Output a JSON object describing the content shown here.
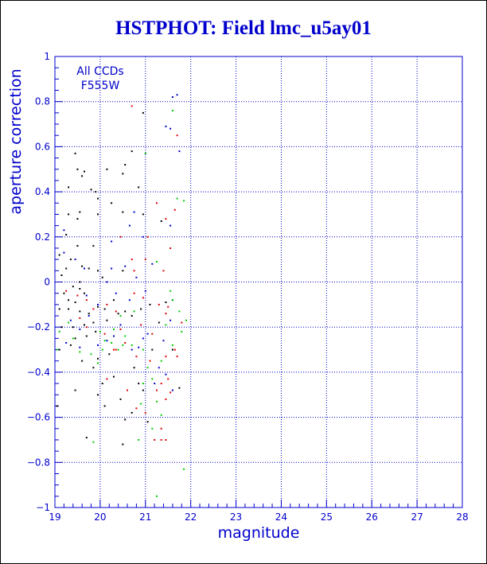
{
  "colors": {
    "title": "#0000cc",
    "axes": "#0000cc",
    "grid": "#0000cc",
    "point_black": "#000000",
    "point_blue": "#0000cc",
    "point_red": "#dd0000",
    "point_green": "#00cc00"
  },
  "chart_data": {
    "type": "scatter",
    "title": "HSTPHOT: Field lmc_u5ay01",
    "xlabel": "magnitude",
    "ylabel": "aperture correction",
    "xlim": [
      19,
      28
    ],
    "ylim": [
      -1,
      1
    ],
    "x_ticks": [
      19,
      20,
      21,
      22,
      23,
      24,
      25,
      26,
      27,
      28
    ],
    "x_tick_labels": [
      "19",
      "20",
      "21",
      "22",
      "23",
      "24",
      "25",
      "26",
      "27",
      "28"
    ],
    "y_ticks": [
      -1,
      -0.8,
      -0.6,
      -0.4,
      -0.2,
      0,
      0.2,
      0.4,
      0.6,
      0.8,
      1
    ],
    "y_tick_labels": [
      "−1",
      "−0.8",
      "−0.6",
      "−0.4",
      "−0.2",
      "0",
      "0.2",
      "0.4",
      "0.6",
      "0.8",
      "1"
    ],
    "grid": true,
    "grid_style": "dotted",
    "annotation": [
      "All CCDs",
      "F555W"
    ],
    "series": [
      {
        "color": "point_black",
        "points": [
          [
            19.45,
            0.57
          ],
          [
            19.5,
            0.5
          ],
          [
            19.65,
            0.49
          ],
          [
            19.6,
            0.47
          ],
          [
            19.9,
            0.4
          ],
          [
            19.8,
            0.41
          ],
          [
            19.3,
            0.42
          ],
          [
            19.95,
            0.37
          ],
          [
            20.15,
            0.5
          ],
          [
            20.5,
            0.48
          ],
          [
            20.7,
            0.58
          ],
          [
            20.55,
            0.52
          ],
          [
            20.85,
            0.42
          ],
          [
            20.25,
            0.35
          ],
          [
            19.95,
            0.3
          ],
          [
            19.55,
            0.31
          ],
          [
            19.3,
            0.3
          ],
          [
            19.5,
            0.28
          ],
          [
            19.5,
            0.16
          ],
          [
            19.1,
            0.12
          ],
          [
            19.35,
            0.1
          ],
          [
            19.25,
            0.06
          ],
          [
            19.6,
            0.07
          ],
          [
            19.15,
            0.03
          ],
          [
            19.55,
            0.0
          ],
          [
            19.75,
            0.06
          ],
          [
            19.95,
            0.05
          ],
          [
            19.4,
            -0.02
          ],
          [
            19.55,
            -0.03
          ],
          [
            19.65,
            -0.05
          ],
          [
            19.2,
            -0.05
          ],
          [
            19.3,
            -0.08
          ],
          [
            19.45,
            -0.09
          ],
          [
            19.1,
            -0.12
          ],
          [
            19.3,
            -0.12
          ],
          [
            19.55,
            -0.13
          ],
          [
            19.75,
            -0.14
          ],
          [
            19.95,
            -0.11
          ],
          [
            20.1,
            -0.12
          ],
          [
            20.3,
            -0.08
          ],
          [
            20.4,
            -0.14
          ],
          [
            20.55,
            -0.13
          ],
          [
            20.7,
            -0.15
          ],
          [
            20.9,
            -0.12
          ],
          [
            20.15,
            -0.17
          ],
          [
            19.85,
            -0.18
          ],
          [
            19.65,
            -0.19
          ],
          [
            19.4,
            -0.2
          ],
          [
            19.15,
            -0.2
          ],
          [
            19.9,
            -0.22
          ],
          [
            19.45,
            -0.25
          ],
          [
            19.35,
            -0.28
          ],
          [
            19.1,
            -0.3
          ],
          [
            19.6,
            -0.35
          ],
          [
            19.95,
            -0.34
          ],
          [
            19.85,
            -0.38
          ],
          [
            19.45,
            -0.48
          ],
          [
            19.05,
            -0.55
          ],
          [
            20.05,
            -0.45
          ],
          [
            19.95,
            -0.5
          ],
          [
            20.1,
            -0.55
          ],
          [
            20.45,
            -0.52
          ],
          [
            20.55,
            -0.61
          ],
          [
            20.7,
            -0.58
          ],
          [
            20.5,
            -0.72
          ],
          [
            19.7,
            -0.69
          ],
          [
            20.95,
            -0.48
          ],
          [
            20.75,
            -0.38
          ],
          [
            20.3,
            -0.42
          ],
          [
            21.1,
            -0.1
          ],
          [
            21.3,
            -0.18
          ],
          [
            21.15,
            -0.3
          ],
          [
            21.45,
            -0.09
          ],
          [
            21.35,
            0.27
          ],
          [
            20.95,
            0.75
          ],
          [
            20.95,
            0.3
          ],
          [
            20.5,
            0.31
          ],
          [
            19.25,
            0.21
          ],
          [
            19.85,
            0.16
          ],
          [
            20.05,
            0.02
          ],
          [
            20.5,
            0.05
          ],
          [
            19.7,
            -0.24
          ],
          [
            20.2,
            -0.32
          ],
          [
            21.75,
            -0.47
          ],
          [
            21.05,
            -0.62
          ],
          [
            21.6,
            -0.3
          ],
          [
            20.85,
            -0.45
          ]
        ]
      },
      {
        "color": "point_blue",
        "points": [
          [
            21.7,
            0.83
          ],
          [
            21.6,
            0.82
          ],
          [
            21.45,
            0.69
          ],
          [
            21.55,
            0.68
          ],
          [
            21.75,
            0.58
          ],
          [
            20.75,
            0.31
          ],
          [
            20.65,
            0.25
          ],
          [
            20.95,
            0.2
          ],
          [
            21.15,
            0.08
          ],
          [
            19.2,
            0.23
          ],
          [
            19.45,
            0.1
          ],
          [
            19.65,
            0.06
          ],
          [
            20.25,
            0.06
          ],
          [
            20.55,
            0.07
          ],
          [
            20.15,
            0.0
          ],
          [
            20.35,
            -0.05
          ],
          [
            20.65,
            -0.08
          ],
          [
            19.95,
            -0.1
          ],
          [
            19.75,
            -0.15
          ],
          [
            20.45,
            -0.19
          ],
          [
            19.55,
            -0.21
          ],
          [
            19.35,
            -0.17
          ],
          [
            19.25,
            -0.27
          ],
          [
            19.55,
            -0.29
          ],
          [
            19.95,
            -0.28
          ],
          [
            20.3,
            -0.24
          ],
          [
            20.15,
            -0.26
          ],
          [
            20.7,
            -0.3
          ],
          [
            20.95,
            -0.25
          ],
          [
            21.05,
            -0.23
          ],
          [
            21.55,
            -0.17
          ],
          [
            21.6,
            -0.08
          ],
          [
            21.3,
            -0.38
          ],
          [
            21.45,
            -0.41
          ],
          [
            21.6,
            -0.48
          ],
          [
            21.2,
            -0.45
          ],
          [
            20.85,
            -0.29
          ],
          [
            19.2,
            0.13
          ],
          [
            20.8,
            0.02
          ],
          [
            20.25,
            0.18
          ],
          [
            21.0,
            -0.04
          ],
          [
            19.7,
            -0.06
          ],
          [
            21.55,
            0.25
          ],
          [
            21.4,
            -0.26
          ]
        ]
      },
      {
        "color": "point_red",
        "points": [
          [
            20.7,
            0.78
          ],
          [
            21.7,
            0.65
          ],
          [
            21.25,
            0.35
          ],
          [
            21.45,
            0.28
          ],
          [
            21.65,
            0.32
          ],
          [
            21.55,
            0.15
          ],
          [
            20.45,
            0.2
          ],
          [
            20.7,
            0.1
          ],
          [
            21.05,
            0.2
          ],
          [
            20.75,
            0.05
          ],
          [
            19.25,
            -0.04
          ],
          [
            19.5,
            -0.06
          ],
          [
            19.7,
            -0.08
          ],
          [
            19.85,
            -0.12
          ],
          [
            20.15,
            -0.1
          ],
          [
            20.35,
            -0.13
          ],
          [
            20.75,
            -0.05
          ],
          [
            20.95,
            -0.07
          ],
          [
            21.3,
            -0.1
          ],
          [
            21.5,
            -0.11
          ],
          [
            21.45,
            -0.14
          ],
          [
            19.55,
            -0.16
          ],
          [
            19.7,
            -0.2
          ],
          [
            20.1,
            -0.23
          ],
          [
            20.45,
            -0.21
          ],
          [
            20.55,
            -0.27
          ],
          [
            20.9,
            -0.19
          ],
          [
            20.8,
            -0.33
          ],
          [
            21.1,
            -0.35
          ],
          [
            21.45,
            -0.33
          ],
          [
            21.65,
            -0.3
          ],
          [
            21.7,
            -0.33
          ],
          [
            21.35,
            -0.45
          ],
          [
            21.5,
            -0.43
          ],
          [
            21.55,
            -0.49
          ],
          [
            21.25,
            -0.48
          ],
          [
            21.45,
            -0.52
          ],
          [
            20.3,
            -0.3
          ],
          [
            20.15,
            -0.43
          ],
          [
            21.35,
            -0.65
          ],
          [
            21.45,
            -0.7
          ],
          [
            21.35,
            -0.7
          ],
          [
            21.2,
            -0.7
          ],
          [
            20.35,
            -0.3
          ],
          [
            21.0,
            -0.58
          ],
          [
            20.8,
            -0.56
          ],
          [
            20.6,
            -0.48
          ],
          [
            21.0,
            0.1
          ],
          [
            21.15,
            -0.23
          ],
          [
            21.4,
            0.05
          ],
          [
            21.8,
            -0.18
          ]
        ]
      },
      {
        "color": "point_green",
        "points": [
          [
            21.6,
            0.76
          ],
          [
            21.0,
            0.57
          ],
          [
            21.7,
            0.37
          ],
          [
            21.85,
            0.36
          ],
          [
            21.25,
            0.09
          ],
          [
            21.55,
            -0.04
          ],
          [
            21.6,
            -0.08
          ],
          [
            21.45,
            -0.19
          ],
          [
            21.75,
            -0.13
          ],
          [
            21.9,
            -0.17
          ],
          [
            20.45,
            -0.15
          ],
          [
            20.75,
            -0.13
          ],
          [
            20.3,
            -0.21
          ],
          [
            20.55,
            -0.24
          ],
          [
            20.7,
            -0.28
          ],
          [
            20.5,
            -0.28
          ],
          [
            20.4,
            -0.3
          ],
          [
            20.25,
            -0.27
          ],
          [
            20.1,
            -0.26
          ],
          [
            20.05,
            -0.3
          ],
          [
            20.0,
            -0.22
          ],
          [
            20.95,
            -0.3
          ],
          [
            21.05,
            -0.38
          ],
          [
            21.15,
            -0.43
          ],
          [
            20.95,
            -0.45
          ],
          [
            21.25,
            -0.53
          ],
          [
            21.35,
            -0.59
          ],
          [
            21.15,
            -0.65
          ],
          [
            20.9,
            -0.54
          ],
          [
            20.85,
            -0.7
          ],
          [
            19.85,
            -0.71
          ],
          [
            19.95,
            -0.36
          ],
          [
            19.8,
            -0.32
          ],
          [
            19.55,
            -0.31
          ],
          [
            19.4,
            -0.25
          ],
          [
            19.05,
            -0.3
          ],
          [
            19.1,
            -0.22
          ],
          [
            19.3,
            -0.18
          ],
          [
            21.85,
            -0.83
          ],
          [
            21.25,
            -0.95
          ],
          [
            21.6,
            -0.28
          ],
          [
            21.8,
            -0.22
          ],
          [
            21.35,
            -0.35
          ]
        ]
      }
    ]
  }
}
